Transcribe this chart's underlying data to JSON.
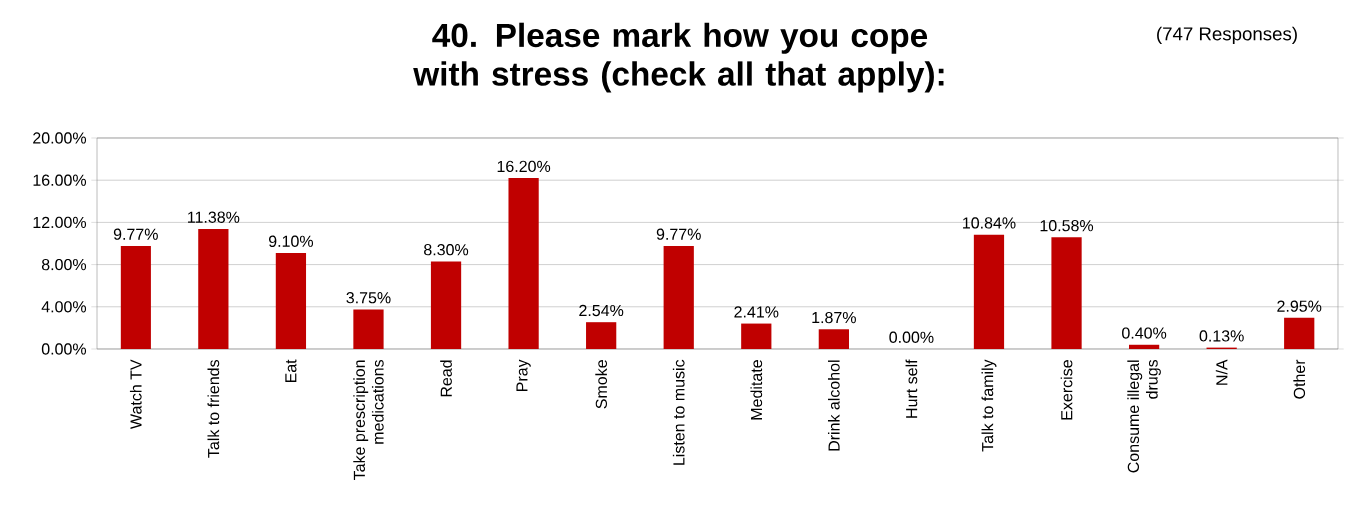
{
  "chart_data": {
    "type": "bar",
    "title": "40.  Please mark how you cope with stress (check all that apply):",
    "annotations": [
      "(747 Responses)"
    ],
    "categories": [
      "Watch TV",
      "Talk to friends",
      "Eat",
      "Take prescription medications",
      "Read",
      "Pray",
      "Smoke",
      "Listen to music",
      "Meditate",
      "Drink alcohol",
      "Hurt self",
      "Talk to family",
      "Exercise",
      "Consume illegal drugs",
      "N/A",
      "Other"
    ],
    "values": [
      9.77,
      11.38,
      9.1,
      3.75,
      8.3,
      16.2,
      2.54,
      9.77,
      2.41,
      1.87,
      0.0,
      10.84,
      10.58,
      0.4,
      0.13,
      2.95
    ],
    "value_labels": [
      "9.77%",
      "11.38%",
      "9.10%",
      "3.75%",
      "8.30%",
      "16.20%",
      "2.54%",
      "9.77%",
      "2.41%",
      "1.87%",
      "0.00%",
      "10.84%",
      "10.58%",
      "0.40%",
      "0.13%",
      "2.95%"
    ],
    "color": "#c00000",
    "ylim": [
      0,
      20
    ],
    "yticks": [
      {
        "value": 0,
        "label": "0.00%"
      },
      {
        "value": 4,
        "label": "4.00%"
      },
      {
        "value": 8,
        "label": "8.00%"
      },
      {
        "value": 12,
        "label": "12.00%"
      },
      {
        "value": 16,
        "label": "16.00%"
      },
      {
        "value": 20,
        "label": "20.00%"
      }
    ],
    "grid": "y"
  }
}
